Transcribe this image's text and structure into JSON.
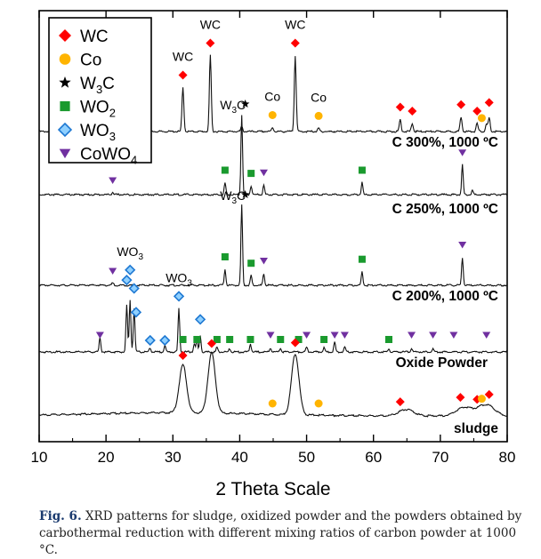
{
  "chart_data": {
    "type": "line",
    "xlabel": "2 Theta Scale",
    "xlim": [
      10,
      80
    ],
    "xticks": [
      "10",
      "20",
      "30",
      "40",
      "50",
      "60",
      "70",
      "80"
    ],
    "legend": {
      "placement": "top-left",
      "entries": [
        {
          "phase": "WC",
          "label": "WC",
          "sub": "",
          "tail": "",
          "marker": "diamond",
          "color": "#ff0000"
        },
        {
          "phase": "Co",
          "label": "Co",
          "sub": "",
          "tail": "",
          "marker": "circle",
          "color": "#ffb400"
        },
        {
          "phase": "W3C",
          "label": "W",
          "sub": "3",
          "tail": "C",
          "marker": "star",
          "color": "#000000"
        },
        {
          "phase": "WO2",
          "label": "WO",
          "sub": "2",
          "tail": "",
          "marker": "square",
          "color": "#1a9a2e"
        },
        {
          "phase": "WO3",
          "label": "WO",
          "sub": "3",
          "tail": "",
          "marker": "diamond-outline",
          "color": "#1e78d2"
        },
        {
          "phase": "CoWO4",
          "label": "CoWO",
          "sub": "4",
          "tail": "",
          "marker": "triangle-down",
          "color": "#7030a0"
        }
      ]
    },
    "series": [
      {
        "name": "C 300%, 1000 ºC",
        "peaks": [
          [
            31.5,
            55
          ],
          [
            35.6,
            95
          ],
          [
            40.3,
            6
          ],
          [
            44.9,
            5
          ],
          [
            48.3,
            95
          ],
          [
            51.8,
            4
          ],
          [
            64.0,
            15
          ],
          [
            65.8,
            10
          ],
          [
            73.1,
            18
          ],
          [
            75.5,
            10
          ],
          [
            76.9,
            9
          ],
          [
            77.3,
            17
          ]
        ],
        "markers": [
          {
            "phase": "WC",
            "x": 31.5
          },
          {
            "phase": "WC",
            "x": 35.6
          },
          {
            "phase": "WC",
            "x": 48.3
          },
          {
            "phase": "Co",
            "x": 44.9
          },
          {
            "phase": "Co",
            "x": 51.8
          },
          {
            "phase": "WC",
            "x": 64.0
          },
          {
            "phase": "WC",
            "x": 65.8
          },
          {
            "phase": "WC",
            "x": 73.1
          },
          {
            "phase": "WC",
            "x": 75.5
          },
          {
            "phase": "Co",
            "x": 76.2
          },
          {
            "phase": "WC",
            "x": 77.3
          }
        ],
        "annotations": [
          {
            "text": "WC",
            "x": 31.5
          },
          {
            "text": "WC",
            "x": 35.6
          },
          {
            "text": "Co",
            "x": 44.9
          },
          {
            "text": "WC",
            "x": 48.3
          },
          {
            "text": "Co",
            "x": 51.8
          }
        ]
      },
      {
        "name": "C 250%, 1000 ºC",
        "peaks": [
          [
            21.0,
            3
          ],
          [
            37.8,
            15
          ],
          [
            40.3,
            100
          ],
          [
            41.7,
            11
          ],
          [
            43.6,
            12
          ],
          [
            58.3,
            15
          ],
          [
            73.3,
            37
          ],
          [
            74.8,
            5
          ]
        ],
        "markers": [
          {
            "phase": "CoWO4",
            "x": 21.0
          },
          {
            "phase": "WO2",
            "x": 37.8
          },
          {
            "phase": "WO2",
            "x": 41.7
          },
          {
            "phase": "CoWO4",
            "x": 43.6
          },
          {
            "phase": "WO2",
            "x": 58.3
          },
          {
            "phase": "CoWO4",
            "x": 73.3
          }
        ],
        "annotations": [
          {
            "text": "W3C",
            "x": 40.3
          }
        ]
      },
      {
        "name": "C 200%, 1000 ºC",
        "peaks": [
          [
            21.0,
            3
          ],
          [
            37.8,
            20
          ],
          [
            40.3,
            100
          ],
          [
            41.7,
            12
          ],
          [
            43.6,
            15
          ],
          [
            58.3,
            17
          ],
          [
            73.3,
            35
          ]
        ],
        "markers": [
          {
            "phase": "CoWO4",
            "x": 21.0
          },
          {
            "phase": "WO2",
            "x": 37.8
          },
          {
            "phase": "WO2",
            "x": 41.7
          },
          {
            "phase": "CoWO4",
            "x": 43.6
          },
          {
            "phase": "WO2",
            "x": 58.3
          },
          {
            "phase": "CoWO4",
            "x": 73.3
          }
        ],
        "annotations": [
          {
            "text": "W3C",
            "x": 40.3
          }
        ]
      },
      {
        "name": "Oxide Powder",
        "peaks": [
          [
            19.1,
            18
          ],
          [
            23.1,
            58
          ],
          [
            23.6,
            65
          ],
          [
            24.2,
            55
          ],
          [
            26.6,
            5
          ],
          [
            28.8,
            8
          ],
          [
            30.9,
            54
          ],
          [
            33.2,
            10
          ],
          [
            33.6,
            16
          ],
          [
            34.1,
            21
          ],
          [
            36.6,
            6
          ],
          [
            38.5,
            4
          ],
          [
            41.6,
            10
          ],
          [
            44.6,
            5
          ],
          [
            46.1,
            5
          ],
          [
            50.0,
            6
          ],
          [
            52.6,
            5
          ],
          [
            54.2,
            12
          ],
          [
            55.7,
            6
          ],
          [
            62.3,
            4
          ],
          [
            65.7,
            5
          ],
          [
            68.9,
            4
          ]
        ],
        "markers": [
          {
            "phase": "CoWO4",
            "x": 19.1
          },
          {
            "phase": "WO3",
            "x": 23.1
          },
          {
            "phase": "WO3",
            "x": 23.6
          },
          {
            "phase": "WO3",
            "x": 24.2
          },
          {
            "phase": "WO3",
            "x": 24.5
          },
          {
            "phase": "WO3",
            "x": 26.6
          },
          {
            "phase": "WO3",
            "x": 28.8
          },
          {
            "phase": "WO3",
            "x": 30.9
          },
          {
            "phase": "WO2",
            "x": 31.5
          },
          {
            "phase": "WO2",
            "x": 33.6
          },
          {
            "phase": "WO3",
            "x": 34.1
          },
          {
            "phase": "WO2",
            "x": 36.6
          },
          {
            "phase": "WO2",
            "x": 38.5
          },
          {
            "phase": "WO2",
            "x": 41.6
          },
          {
            "phase": "CoWO4",
            "x": 44.6
          },
          {
            "phase": "WO2",
            "x": 46.1
          },
          {
            "phase": "WO2",
            "x": 48.8
          },
          {
            "phase": "CoWO4",
            "x": 50.0
          },
          {
            "phase": "WO2",
            "x": 52.6
          },
          {
            "phase": "CoWO4",
            "x": 54.2
          },
          {
            "phase": "CoWO4",
            "x": 55.7
          },
          {
            "phase": "WO2",
            "x": 62.3
          },
          {
            "phase": "CoWO4",
            "x": 65.7
          },
          {
            "phase": "CoWO4",
            "x": 68.9
          },
          {
            "phase": "CoWO4",
            "x": 72.0
          },
          {
            "phase": "CoWO4",
            "x": 76.9
          }
        ],
        "annotations": [
          {
            "text": "WO3",
            "x": 23.6
          },
          {
            "text": "WO3",
            "x": 30.9
          }
        ]
      },
      {
        "name": "sludge",
        "peaks": [
          [
            31.5,
            60
          ],
          [
            35.8,
            75
          ],
          [
            48.3,
            76
          ],
          [
            64.9,
            8
          ],
          [
            73.4,
            10
          ],
          [
            75.6,
            5
          ],
          [
            77.1,
            12
          ]
        ],
        "markers": [
          {
            "phase": "WC",
            "x": 31.5
          },
          {
            "phase": "WC",
            "x": 35.8
          },
          {
            "phase": "Co",
            "x": 44.9
          },
          {
            "phase": "WC",
            "x": 48.3
          },
          {
            "phase": "Co",
            "x": 51.8
          },
          {
            "phase": "WC",
            "x": 64.0
          },
          {
            "phase": "WC",
            "x": 73.0
          },
          {
            "phase": "WC",
            "x": 75.5
          },
          {
            "phase": "Co",
            "x": 76.2
          },
          {
            "phase": "WC",
            "x": 77.3
          }
        ],
        "annotations": []
      }
    ]
  },
  "caption": {
    "label": "Fig. 6.",
    "text": " XRD patterns for sludge, oxidized powder and the powders obtained by carbothermal reduction with different mixing ratios of carbon powder at 1000 °C."
  }
}
